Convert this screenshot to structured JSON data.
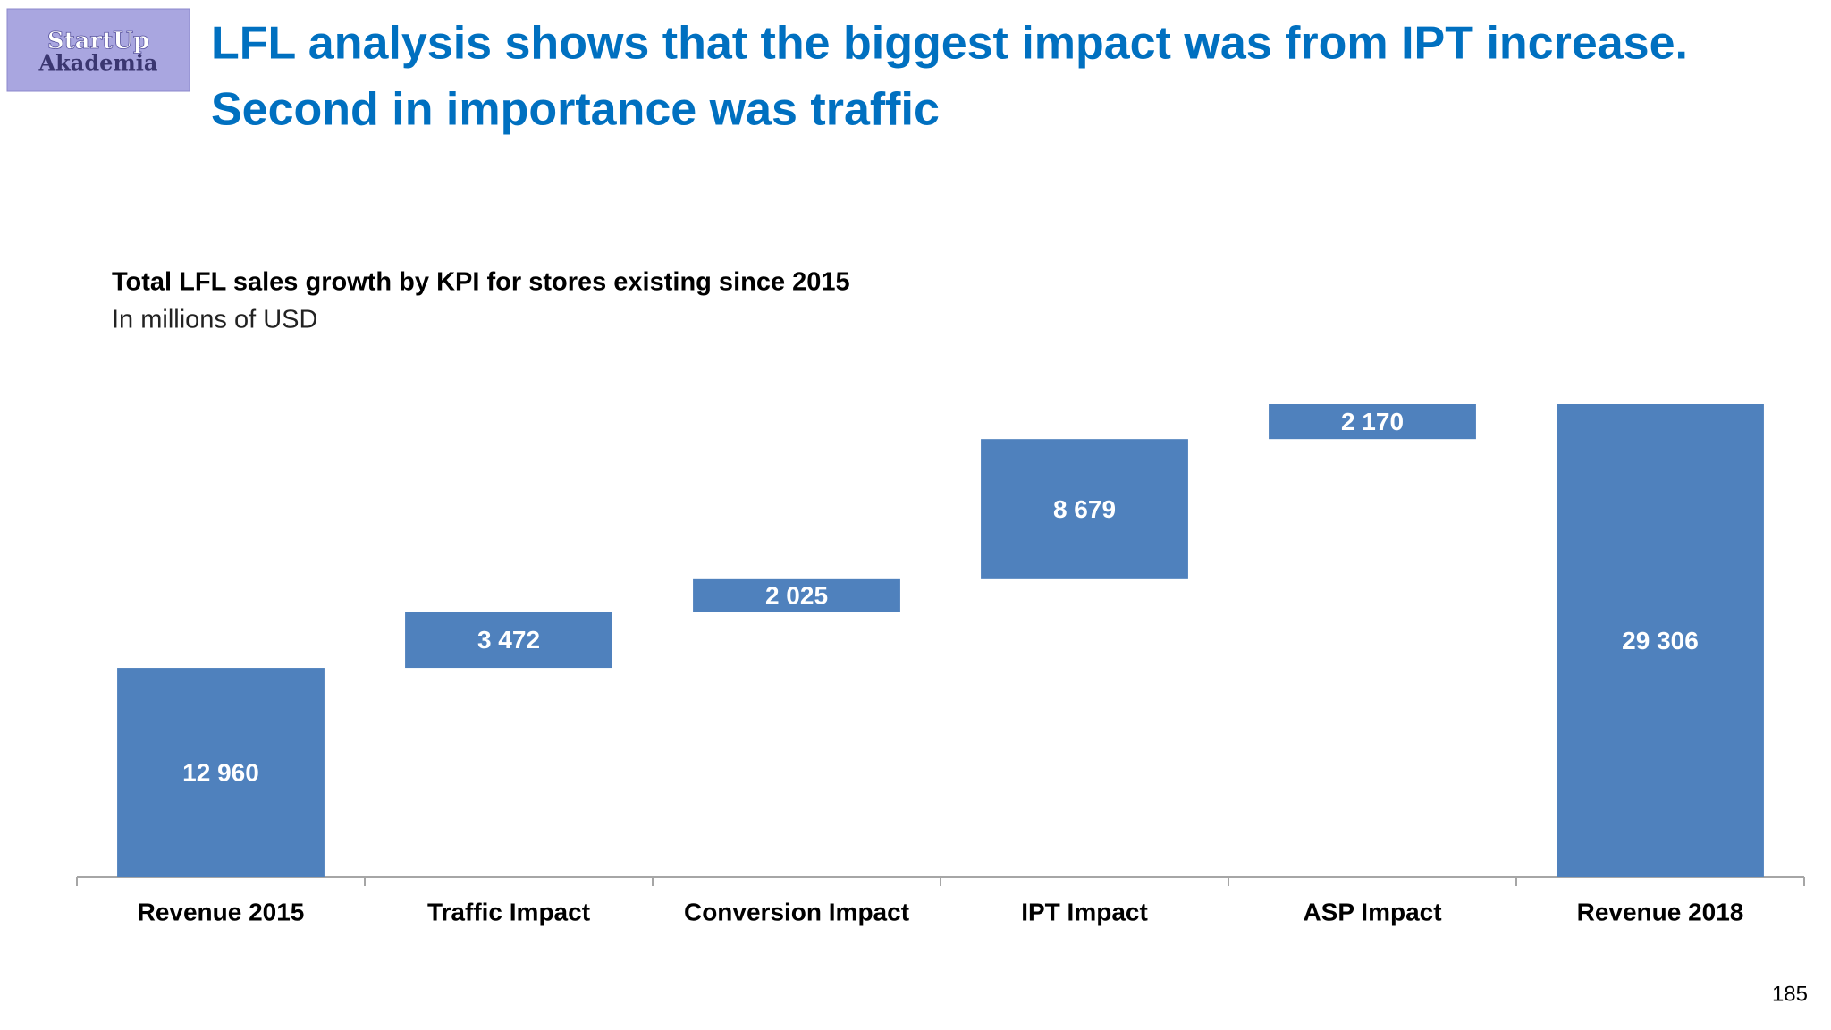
{
  "logo": [
    "StartUp",
    "Akademia"
  ],
  "headline": [
    "LFL analysis shows that the biggest impact was from IPT increase.",
    "Second in importance was traffic"
  ],
  "chart_data": {
    "type": "waterfall",
    "title": "Total LFL sales growth by KPI for stores existing since 2015",
    "subtitle": "In millions of USD",
    "categories": [
      "Revenue 2015",
      "Traffic Impact",
      "Conversion Impact",
      "IPT Impact",
      "ASP Impact",
      "Revenue 2018"
    ],
    "measures": [
      "absolute",
      "relative",
      "relative",
      "relative",
      "relative",
      "total"
    ],
    "values": [
      12960,
      3472,
      2025,
      8679,
      2170,
      29306
    ],
    "value_labels": [
      "12 960",
      "3 472",
      "2 025",
      "8 679",
      "2 170",
      "29 306"
    ],
    "color": "#4f81bd"
  },
  "page_number": "185"
}
